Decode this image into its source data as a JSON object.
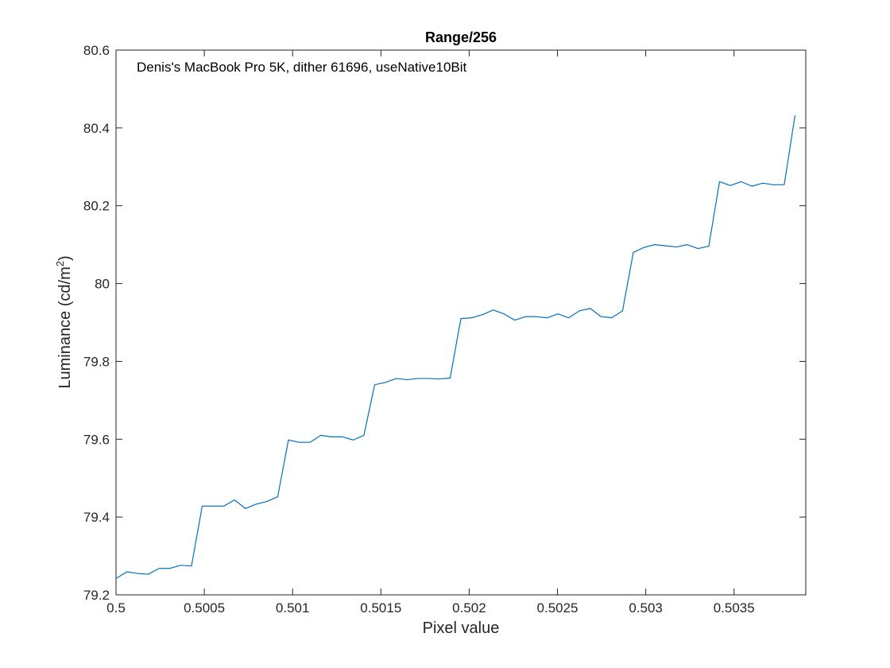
{
  "chart_data": {
    "type": "line",
    "title": "Range/256",
    "annotation": "Denis's MacBook Pro 5K, dither 61696, useNative10Bit",
    "xlabel": "Pixel value",
    "ylabel_main": "Luminance (cd/m",
    "ylabel_sup": "2",
    "ylabel_end": ")",
    "xlim": [
      0.5,
      0.50390625
    ],
    "ylim": [
      79.2,
      80.6
    ],
    "x_ticks": [
      0.5,
      0.5005,
      0.501,
      0.5015,
      0.502,
      0.5025,
      0.503,
      0.5035
    ],
    "x_tick_labels": [
      "0.5",
      "0.5005",
      "0.501",
      "0.5015",
      "0.502",
      "0.5025",
      "0.503",
      "0.5035"
    ],
    "y_ticks": [
      79.2,
      79.4,
      79.6,
      79.8,
      80,
      80.2,
      80.4,
      80.6
    ],
    "y_tick_labels": [
      "79.2",
      "79.4",
      "79.6",
      "79.8",
      "80",
      "80.2",
      "80.4",
      "80.6"
    ],
    "grid": false,
    "x_step": 6.103515625e-05,
    "series": [
      {
        "color": "#0072BD",
        "y": [
          79.242,
          79.259,
          79.255,
          79.253,
          79.268,
          79.268,
          79.276,
          79.274,
          79.428,
          79.428,
          79.428,
          79.444,
          79.422,
          79.433,
          79.44,
          79.452,
          79.598,
          79.592,
          79.592,
          79.61,
          79.606,
          79.606,
          79.598,
          79.61,
          79.74,
          79.746,
          79.756,
          79.753,
          79.756,
          79.756,
          79.755,
          79.757,
          79.91,
          79.912,
          79.92,
          79.932,
          79.922,
          79.906,
          79.915,
          79.915,
          79.912,
          79.922,
          79.912,
          79.93,
          79.936,
          79.915,
          79.912,
          79.93,
          80.08,
          80.093,
          80.1,
          80.097,
          80.094,
          80.1,
          80.09,
          80.096,
          80.262,
          80.252,
          80.262,
          80.25,
          80.258,
          80.254,
          80.254,
          80.432
        ]
      }
    ]
  }
}
